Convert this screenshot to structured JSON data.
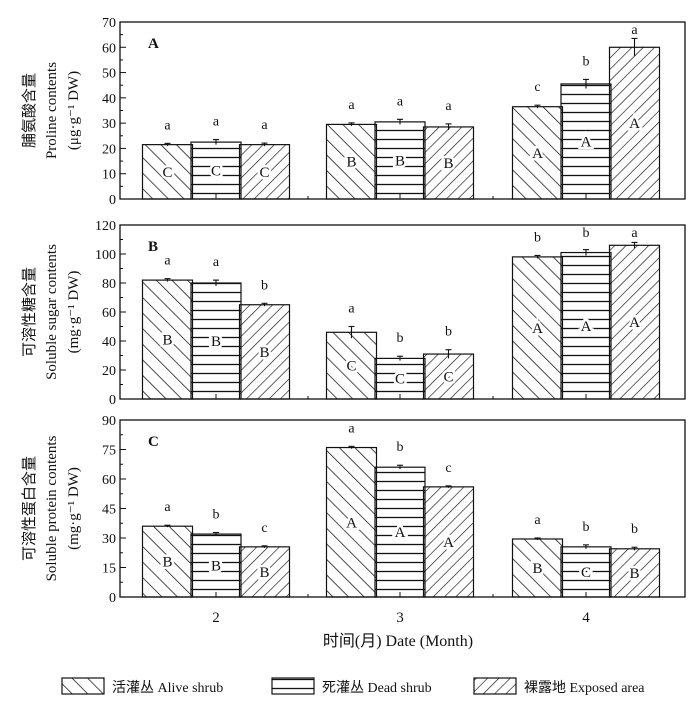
{
  "figure": {
    "xlabel": "时间(月) Date (Month)",
    "legend_position": "bottom",
    "colors": {
      "ink": "#111111",
      "background": "#ffffff"
    }
  },
  "chart_data": [
    {
      "type": "bar",
      "panel": "A",
      "ylabel_cn": "脯氨酸含量",
      "ylabel": "Proline contents",
      "yunit": "(μg·g⁻¹ DW)",
      "categories": [
        "2",
        "3",
        "4"
      ],
      "ylim": [
        0,
        70
      ],
      "yticks": [
        0,
        10,
        20,
        30,
        40,
        50,
        60,
        70
      ],
      "series": [
        {
          "name": "活灌丛 Alive shrub",
          "pattern": "diag-right",
          "values": [
            21.5,
            29.5,
            36.5
          ],
          "errors": [
            0.5,
            0.6,
            0.6
          ],
          "lower_letters": [
            "a",
            "a",
            "c"
          ],
          "upper_letters": [
            "C",
            "B",
            "A"
          ]
        },
        {
          "name": "死灌丛 Dead shrub",
          "pattern": "horizontal",
          "values": [
            22.5,
            30.5,
            45.5
          ],
          "errors": [
            1.0,
            1.0,
            1.8
          ],
          "lower_letters": [
            "a",
            "a",
            "b"
          ],
          "upper_letters": [
            "C",
            "B",
            "A"
          ]
        },
        {
          "name": "裸露地 Exposed area",
          "pattern": "diag-left",
          "values": [
            21.5,
            28.5,
            60.0
          ],
          "errors": [
            0.6,
            1.2,
            3.5
          ],
          "lower_letters": [
            "a",
            "a",
            "a"
          ],
          "upper_letters": [
            "C",
            "B",
            "A"
          ]
        }
      ]
    },
    {
      "type": "bar",
      "panel": "B",
      "ylabel_cn": "可溶性糖含量",
      "ylabel": "Soluble sugar contents",
      "yunit": "(mg·g⁻¹ DW)",
      "categories": [
        "2",
        "3",
        "4"
      ],
      "ylim": [
        0,
        120
      ],
      "yticks": [
        0,
        20,
        40,
        60,
        80,
        100,
        120
      ],
      "series": [
        {
          "name": "活灌丛 Alive shrub",
          "pattern": "diag-right",
          "values": [
            82,
            46,
            98
          ],
          "errors": [
            1.0,
            4.0,
            1.0
          ],
          "lower_letters": [
            "a",
            "a",
            "b"
          ],
          "upper_letters": [
            "B",
            "C",
            "A"
          ]
        },
        {
          "name": "死灌丛 Dead shrub",
          "pattern": "horizontal",
          "values": [
            80,
            28,
            101
          ],
          "errors": [
            2.0,
            1.5,
            2.0
          ],
          "lower_letters": [
            "a",
            "b",
            "b"
          ],
          "upper_letters": [
            "B",
            "C",
            "A"
          ]
        },
        {
          "name": "裸露地 Exposed area",
          "pattern": "diag-left",
          "values": [
            65,
            31,
            106
          ],
          "errors": [
            1.0,
            3.0,
            2.0
          ],
          "lower_letters": [
            "b",
            "b",
            "a"
          ],
          "upper_letters": [
            "B",
            "C",
            "A"
          ]
        }
      ]
    },
    {
      "type": "bar",
      "panel": "C",
      "ylabel_cn": "可溶性蛋白含量",
      "ylabel": "Soluble protein contents",
      "yunit": "(mg·g⁻¹ DW)",
      "categories": [
        "2",
        "3",
        "4"
      ],
      "ylim": [
        0,
        90
      ],
      "yticks": [
        0,
        15,
        30,
        45,
        60,
        75,
        90
      ],
      "series": [
        {
          "name": "活灌丛 Alive shrub",
          "pattern": "diag-right",
          "values": [
            36,
            76,
            29.5
          ],
          "errors": [
            0.5,
            0.6,
            0.5
          ],
          "lower_letters": [
            "a",
            "a",
            "a"
          ],
          "upper_letters": [
            "B",
            "A",
            "B"
          ]
        },
        {
          "name": "死灌丛 Dead shrub",
          "pattern": "horizontal",
          "values": [
            32,
            66,
            25.5
          ],
          "errors": [
            0.8,
            1.0,
            1.0
          ],
          "lower_letters": [
            "b",
            "b",
            "b"
          ],
          "upper_letters": [
            "B",
            "A",
            "C"
          ]
        },
        {
          "name": "裸露地 Exposed area",
          "pattern": "diag-left",
          "values": [
            25.5,
            56,
            24.5
          ],
          "errors": [
            0.5,
            0.5,
            0.8
          ],
          "lower_letters": [
            "c",
            "c",
            "b"
          ],
          "upper_letters": [
            "B",
            "A",
            "B"
          ]
        }
      ]
    }
  ]
}
